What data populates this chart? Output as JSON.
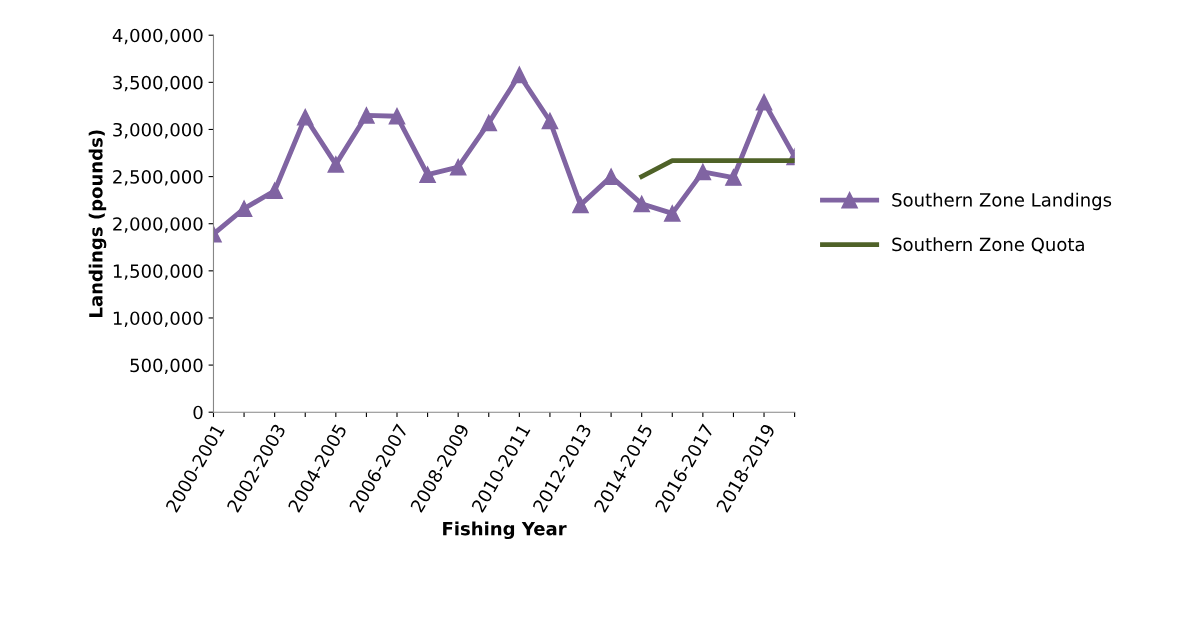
{
  "chart_data": {
    "type": "line",
    "xlabel": "Fishing Year",
    "ylabel": "Landings (pounds)",
    "categories": [
      "2000-2001",
      null,
      "2002-2003",
      null,
      "2004-2005",
      null,
      "2006-2007",
      null,
      "2008-2009",
      null,
      "2010-2011",
      null,
      "2012-2013",
      null,
      "2014-2015",
      null,
      "2016-2017",
      null,
      "2018-2019",
      null
    ],
    "series": [
      {
        "name": "Southern Zone Landings",
        "color": "#8064a2",
        "marker": "triangle",
        "values": [
          1890000,
          2160000,
          2350000,
          3130000,
          2630000,
          3150000,
          3140000,
          2520000,
          2600000,
          3070000,
          3580000,
          3090000,
          2200000,
          2500000,
          2210000,
          2110000,
          2550000,
          2490000,
          3290000,
          2710000
        ]
      },
      {
        "name": "Southern Zone Quota",
        "color": "#4f6228",
        "marker": "none",
        "values": [
          null,
          null,
          null,
          null,
          null,
          null,
          null,
          null,
          null,
          null,
          null,
          null,
          null,
          null,
          2500000,
          2670000,
          2670000,
          2670000,
          2670000,
          2670000
        ]
      }
    ],
    "ylim": [
      0,
      4000000
    ],
    "yticks": [
      0,
      {
        "value": 500000,
        "label": "500,000"
      },
      {
        "value": 1000000,
        "label": "1,000,000"
      },
      {
        "value": 1500000,
        "label": "1,500,000"
      },
      {
        "value": 2000000,
        "label": "2,000,000"
      },
      {
        "value": 2500000,
        "label": "2,500,000"
      },
      {
        "value": 3000000,
        "label": "3,000,000"
      },
      {
        "value": 3500000,
        "label": "3,500,000"
      },
      {
        "value": 4000000,
        "label": "4,000,000"
      }
    ],
    "grid": false,
    "legend": "right"
  }
}
